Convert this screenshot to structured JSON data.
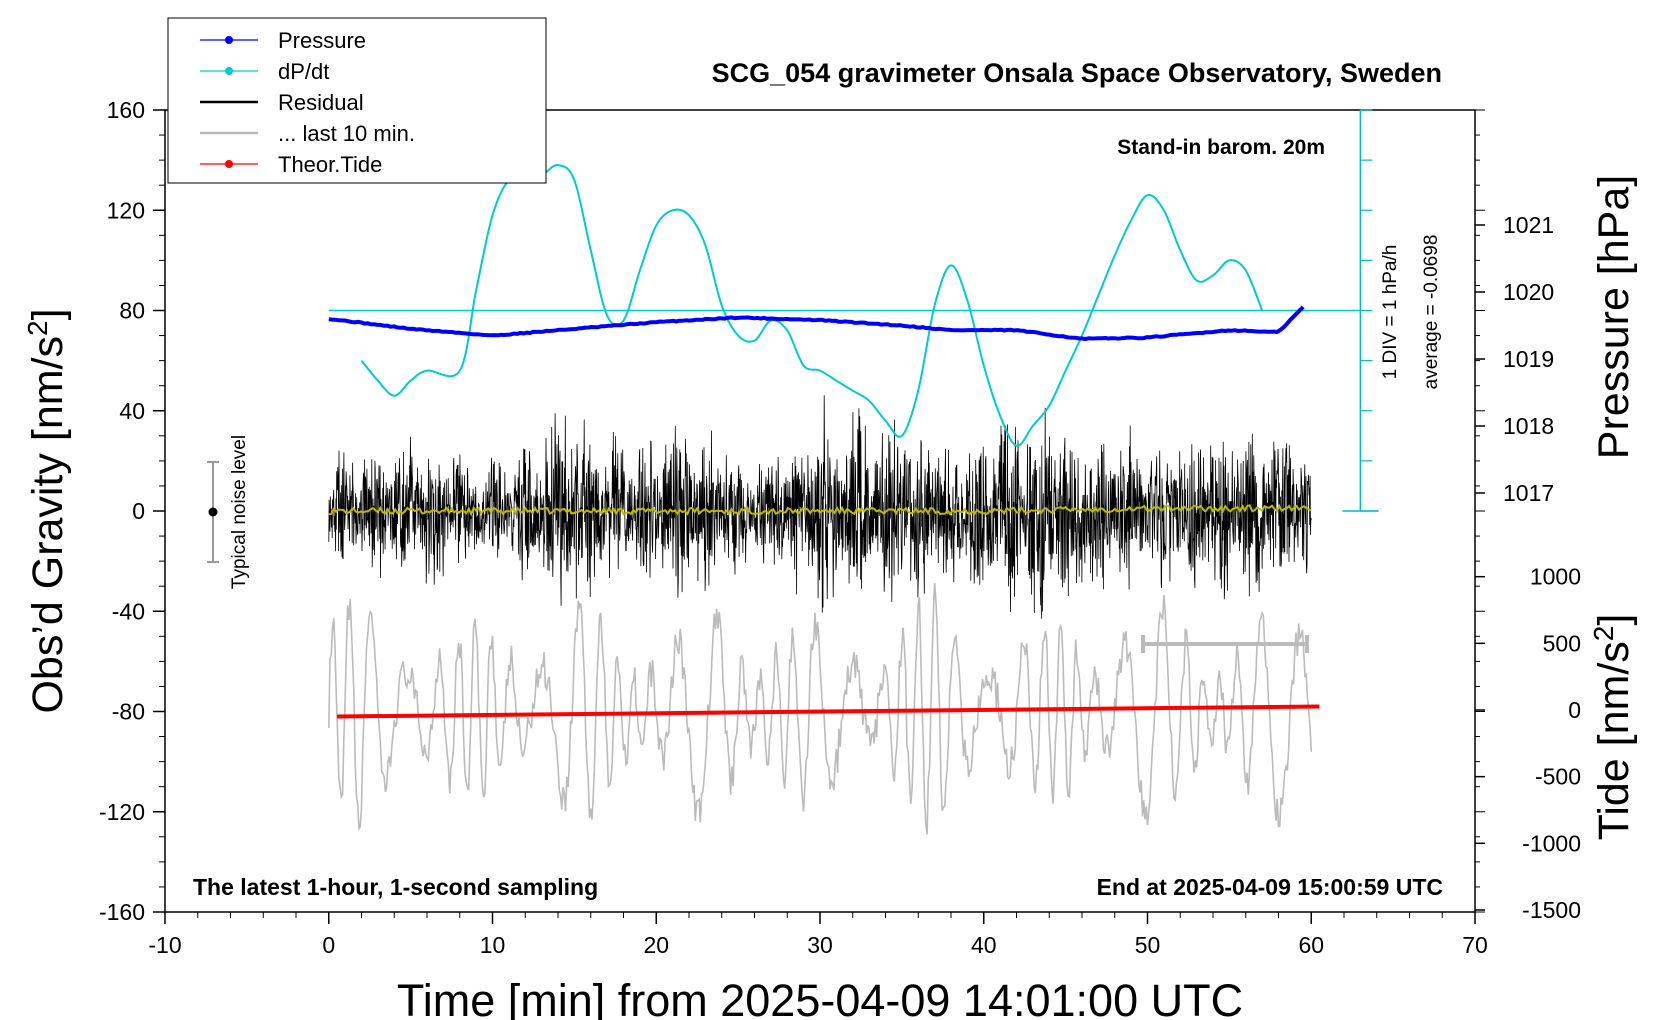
{
  "chart_data": {
    "type": "line",
    "title": "SCG_054 gravimeter Onsala Space Observatory, Sweden",
    "xlabel": "Time [min] from 2025-04-09 14:01:00 UTC",
    "ylabel_left": "Obs’d Gravity [nm/s",
    "ylabel_left_sup": "2",
    "ylabel_left_end": "]",
    "ylabel_right_top": "Pressure [hPa]",
    "ylabel_right_bottom": "Tide [nm/s",
    "ylabel_right_bottom_sup": "2",
    "ylabel_right_bottom_end": "]",
    "xlim": [
      -10,
      70
    ],
    "ylim_left": [
      -160,
      160
    ],
    "x_ticks": [
      "-10",
      "0",
      "10",
      "20",
      "30",
      "40",
      "50",
      "60",
      "70"
    ],
    "y_ticks_left": [
      "160",
      "120",
      "80",
      "40",
      "0",
      "-40",
      "-80",
      "-120",
      "-160"
    ],
    "pressure_ticks": [
      "1021",
      "1020",
      "1019",
      "1018",
      "1017"
    ],
    "tide_ticks": [
      "1000",
      "500",
      "0",
      "-500",
      "-1000",
      "-1500"
    ],
    "legend": [
      {
        "label": "Pressure",
        "color": "#0000ff",
        "marker": true
      },
      {
        "label": "dP/dt",
        "color": "#00cccc",
        "marker": true
      },
      {
        "label": "Residual",
        "color": "#000000",
        "marker": false
      },
      {
        "label": "... last 10 min.",
        "color": "#bbbbbb",
        "marker": false
      },
      {
        "label": "Theor.Tide",
        "color": "#ff0000",
        "marker": true
      }
    ],
    "annotations": {
      "barometer": "Stand-in barom. 20m",
      "dpdt_scale": "1 DIV = 1 hPa/h",
      "dpdt_average": "average = -0.0698",
      "noise_level": "Typical noise level",
      "sampling": "The latest 1-hour, 1-second sampling",
      "end_time": "End at 2025-04-09 15:00:59 UTC"
    },
    "series": [
      {
        "name": "Pressure",
        "unit": "hPa",
        "color": "#0000ff",
        "x": [
          0,
          5,
          10,
          15,
          20,
          25,
          30,
          35,
          38,
          42,
          46,
          50,
          55,
          58,
          60
        ],
        "y": [
          1019.6,
          1019.45,
          1019.35,
          1019.45,
          1019.55,
          1019.62,
          1019.58,
          1019.5,
          1019.43,
          1019.43,
          1019.3,
          1019.32,
          1019.43,
          1019.4,
          1019.9
        ]
      },
      {
        "name": "dP/dt",
        "unit": "hPa/h",
        "color": "#00cccc",
        "baseline": 80,
        "div_nm": 20,
        "x": [
          2,
          3,
          4,
          5,
          6,
          8,
          9,
          10,
          11,
          12,
          13,
          14,
          15,
          16,
          17,
          18,
          19,
          20,
          21,
          22,
          23,
          24,
          25,
          26,
          27,
          28,
          29,
          30,
          31,
          32,
          33,
          34,
          35,
          36,
          37,
          38,
          39,
          40,
          41,
          42,
          43,
          44,
          45,
          46,
          47,
          48,
          49,
          50,
          51,
          52,
          53,
          54,
          55,
          56,
          57
        ],
        "y": [
          -1.0,
          -1.4,
          -1.7,
          -1.4,
          -1.2,
          -1.2,
          0.4,
          1.9,
          2.6,
          2.6,
          2.7,
          2.9,
          2.6,
          1.2,
          -0.1,
          -0.2,
          0.8,
          1.7,
          2.0,
          1.9,
          1.3,
          0.1,
          -0.5,
          -0.6,
          -0.2,
          -0.4,
          -1.1,
          -1.2,
          -1.4,
          -1.6,
          -1.8,
          -2.2,
          -2.5,
          -1.6,
          0.1,
          0.9,
          0.2,
          -1.1,
          -2.1,
          -2.7,
          -2.3,
          -1.9,
          -1.2,
          -0.5,
          0.3,
          1.1,
          1.8,
          2.3,
          2.0,
          1.2,
          0.6,
          0.7,
          1.0,
          0.8,
          0.0
        ]
      },
      {
        "name": "Residual",
        "unit": "nm/s2",
        "color": "#000000",
        "x": [
          0,
          6,
          11,
          14,
          18,
          22,
          26,
          31,
          37,
          44,
          50,
          54,
          60
        ],
        "envelope": [
          26,
          35,
          22,
          52,
          30,
          48,
          22,
          55,
          36,
          52,
          32,
          44,
          36
        ]
      },
      {
        "name": "Residual smoothed",
        "unit": "nm/s2",
        "color": "#bbbb00",
        "x": [
          0,
          10,
          20,
          30,
          40,
          50,
          60
        ],
        "y": [
          0,
          0,
          0,
          0,
          0,
          1,
          1
        ]
      },
      {
        "name": "... last 10 min.",
        "unit": "nm/s2",
        "color": "#bbbbbb",
        "x_window": [
          50,
          60
        ],
        "center": -80
      },
      {
        "name": "Theor.Tide",
        "unit": "nm/s2",
        "color": "#ff0000",
        "x": [
          0.5,
          60.5
        ],
        "y": [
          -82,
          -78
        ]
      }
    ]
  }
}
